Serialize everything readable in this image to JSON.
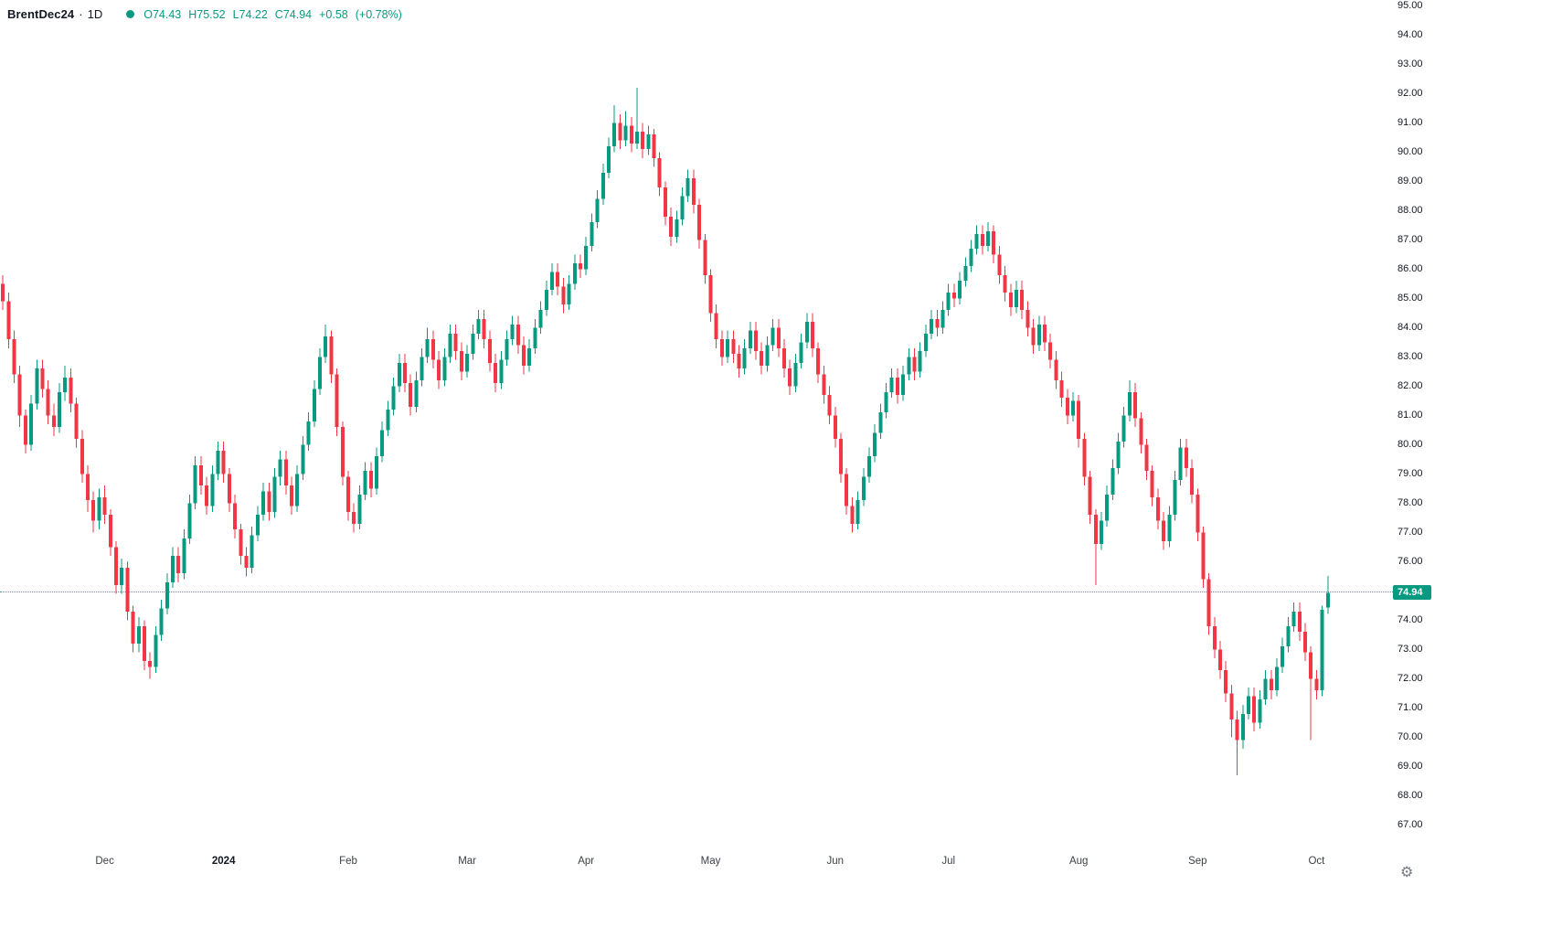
{
  "header": {
    "symbol": "BrentDec24",
    "separator": "·",
    "interval": "1D",
    "ohlc": {
      "o_label": "O",
      "open": "74.43",
      "h_label": "H",
      "high": "75.52",
      "l_label": "L",
      "low": "74.22",
      "c_label": "C",
      "close": "74.94",
      "change": "+0.58",
      "change_pct": "(+0.78%)"
    }
  },
  "colors": {
    "up": "#089981",
    "down": "#f23645",
    "text": "#131722",
    "axis_text": "#131722"
  },
  "price_axis": {
    "last_price": "74.94"
  },
  "icons": {
    "settings": "⚙"
  },
  "chart_data": {
    "type": "candlestick",
    "title": "BrentDec24 · 1D",
    "symbol": "BrentDec24",
    "interval": "1D",
    "ylim": [
      66.2,
      95.2
    ],
    "slots": 246,
    "last_price": 74.94,
    "grid": false,
    "legend_position": "top-left",
    "y_ticks": [
      67,
      68,
      69,
      70,
      71,
      72,
      73,
      74,
      75,
      76,
      77,
      78,
      79,
      80,
      81,
      82,
      83,
      84,
      85,
      86,
      87,
      88,
      89,
      90,
      91,
      92,
      93,
      94,
      95
    ],
    "x_ticks": [
      {
        "label": "Dec",
        "bar": 18,
        "bold": false
      },
      {
        "label": "2024",
        "bar": 39,
        "bold": true
      },
      {
        "label": "Feb",
        "bar": 61,
        "bold": false
      },
      {
        "label": "Mar",
        "bar": 82,
        "bold": false
      },
      {
        "label": "Apr",
        "bar": 103,
        "bold": false
      },
      {
        "label": "May",
        "bar": 125,
        "bold": false
      },
      {
        "label": "Jun",
        "bar": 147,
        "bold": false
      },
      {
        "label": "Jul",
        "bar": 167,
        "bold": false
      },
      {
        "label": "Aug",
        "bar": 190,
        "bold": false
      },
      {
        "label": "Sep",
        "bar": 211,
        "bold": false
      },
      {
        "label": "Oct",
        "bar": 232,
        "bold": false
      }
    ],
    "candles": [
      [
        85.5,
        85.8,
        84.6,
        84.9
      ],
      [
        84.9,
        85.2,
        83.3,
        83.6
      ],
      [
        83.6,
        83.9,
        82.1,
        82.4
      ],
      [
        82.4,
        82.7,
        80.6,
        81.0
      ],
      [
        81.0,
        81.2,
        79.7,
        80.0
      ],
      [
        80.0,
        81.7,
        79.8,
        81.4
      ],
      [
        81.4,
        82.9,
        81.2,
        82.6
      ],
      [
        82.6,
        82.9,
        81.6,
        81.9
      ],
      [
        81.9,
        82.2,
        80.7,
        81.0
      ],
      [
        81.0,
        81.4,
        80.3,
        80.6
      ],
      [
        80.6,
        82.1,
        80.4,
        81.8
      ],
      [
        81.8,
        82.7,
        81.5,
        82.3
      ],
      [
        82.3,
        82.6,
        81.1,
        81.4
      ],
      [
        81.4,
        81.6,
        79.9,
        80.2
      ],
      [
        80.2,
        80.5,
        78.7,
        79.0
      ],
      [
        79.0,
        79.3,
        77.7,
        78.1
      ],
      [
        78.1,
        78.4,
        77.0,
        77.4
      ],
      [
        77.4,
        78.5,
        77.1,
        78.2
      ],
      [
        78.2,
        78.6,
        77.3,
        77.6
      ],
      [
        77.6,
        77.8,
        76.2,
        76.5
      ],
      [
        76.5,
        76.7,
        74.9,
        75.2
      ],
      [
        75.2,
        76.1,
        74.9,
        75.8
      ],
      [
        75.8,
        76.0,
        74.0,
        74.3
      ],
      [
        74.3,
        74.5,
        72.9,
        73.2
      ],
      [
        73.2,
        74.1,
        72.9,
        73.8
      ],
      [
        73.8,
        74.0,
        72.3,
        72.6
      ],
      [
        72.6,
        72.9,
        72.0,
        72.4
      ],
      [
        72.4,
        73.8,
        72.2,
        73.5
      ],
      [
        73.5,
        74.7,
        73.3,
        74.4
      ],
      [
        74.4,
        75.6,
        74.2,
        75.3
      ],
      [
        75.3,
        76.5,
        75.1,
        76.2
      ],
      [
        76.2,
        76.5,
        75.3,
        75.6
      ],
      [
        75.6,
        77.1,
        75.4,
        76.8
      ],
      [
        76.8,
        78.3,
        76.6,
        78.0
      ],
      [
        78.0,
        79.6,
        77.8,
        79.3
      ],
      [
        79.3,
        79.6,
        78.3,
        78.6
      ],
      [
        78.6,
        78.9,
        77.6,
        77.9
      ],
      [
        77.9,
        79.3,
        77.7,
        79.0
      ],
      [
        79.0,
        80.1,
        78.8,
        79.8
      ],
      [
        79.8,
        80.1,
        78.7,
        79.0
      ],
      [
        79.0,
        79.2,
        77.7,
        78.0
      ],
      [
        78.0,
        78.3,
        76.8,
        77.1
      ],
      [
        77.1,
        77.3,
        75.9,
        76.2
      ],
      [
        76.2,
        76.5,
        75.5,
        75.8
      ],
      [
        75.8,
        77.2,
        75.6,
        76.9
      ],
      [
        76.9,
        77.9,
        76.7,
        77.6
      ],
      [
        77.6,
        78.7,
        77.4,
        78.4
      ],
      [
        78.4,
        78.7,
        77.4,
        77.7
      ],
      [
        77.7,
        79.2,
        77.5,
        78.9
      ],
      [
        78.9,
        79.8,
        78.6,
        79.5
      ],
      [
        79.5,
        79.8,
        78.3,
        78.6
      ],
      [
        78.6,
        78.9,
        77.6,
        77.9
      ],
      [
        77.9,
        79.3,
        77.7,
        79.0
      ],
      [
        79.0,
        80.3,
        78.8,
        80.0
      ],
      [
        80.0,
        81.1,
        79.8,
        80.8
      ],
      [
        80.8,
        82.2,
        80.6,
        81.9
      ],
      [
        81.9,
        83.3,
        81.7,
        83.0
      ],
      [
        83.0,
        84.1,
        82.8,
        83.7
      ],
      [
        83.7,
        83.9,
        82.1,
        82.4
      ],
      [
        82.4,
        82.6,
        80.3,
        80.6
      ],
      [
        80.6,
        80.8,
        78.6,
        78.9
      ],
      [
        78.9,
        79.1,
        77.4,
        77.7
      ],
      [
        77.7,
        78.0,
        77.0,
        77.3
      ],
      [
        77.3,
        78.6,
        77.1,
        78.3
      ],
      [
        78.3,
        79.4,
        78.1,
        79.1
      ],
      [
        79.1,
        79.4,
        78.2,
        78.5
      ],
      [
        78.5,
        79.9,
        78.3,
        79.6
      ],
      [
        79.6,
        80.8,
        79.4,
        80.5
      ],
      [
        80.5,
        81.5,
        80.3,
        81.2
      ],
      [
        81.2,
        82.3,
        81.0,
        82.0
      ],
      [
        82.0,
        83.1,
        81.8,
        82.8
      ],
      [
        82.8,
        83.1,
        81.8,
        82.1
      ],
      [
        82.1,
        82.4,
        81.0,
        81.3
      ],
      [
        81.3,
        82.5,
        81.1,
        82.2
      ],
      [
        82.2,
        83.3,
        82.0,
        83.0
      ],
      [
        83.0,
        84.0,
        82.8,
        83.6
      ],
      [
        83.6,
        83.9,
        82.6,
        82.9
      ],
      [
        82.9,
        83.2,
        81.9,
        82.2
      ],
      [
        82.2,
        83.3,
        82.0,
        83.0
      ],
      [
        83.0,
        84.1,
        82.8,
        83.8
      ],
      [
        83.8,
        84.1,
        82.9,
        83.2
      ],
      [
        83.2,
        83.5,
        82.2,
        82.5
      ],
      [
        82.5,
        83.4,
        82.3,
        83.1
      ],
      [
        83.1,
        84.1,
        82.9,
        83.8
      ],
      [
        83.8,
        84.6,
        83.6,
        84.3
      ],
      [
        84.3,
        84.6,
        83.3,
        83.6
      ],
      [
        83.6,
        83.9,
        82.5,
        82.8
      ],
      [
        82.8,
        83.1,
        81.8,
        82.1
      ],
      [
        82.1,
        83.2,
        81.9,
        82.9
      ],
      [
        82.9,
        83.9,
        82.7,
        83.6
      ],
      [
        83.6,
        84.4,
        83.4,
        84.1
      ],
      [
        84.1,
        84.4,
        83.1,
        83.4
      ],
      [
        83.4,
        83.7,
        82.4,
        82.7
      ],
      [
        82.7,
        83.6,
        82.5,
        83.3
      ],
      [
        83.3,
        84.3,
        83.1,
        84.0
      ],
      [
        84.0,
        84.9,
        83.8,
        84.6
      ],
      [
        84.6,
        85.6,
        84.4,
        85.3
      ],
      [
        85.3,
        86.2,
        85.1,
        85.9
      ],
      [
        85.9,
        86.2,
        85.1,
        85.4
      ],
      [
        85.4,
        85.7,
        84.5,
        84.8
      ],
      [
        84.8,
        85.8,
        84.6,
        85.5
      ],
      [
        85.5,
        86.5,
        85.3,
        86.2
      ],
      [
        86.2,
        86.5,
        85.7,
        86.0
      ],
      [
        86.0,
        87.1,
        85.8,
        86.8
      ],
      [
        86.8,
        87.9,
        86.6,
        87.6
      ],
      [
        87.6,
        88.7,
        87.4,
        88.4
      ],
      [
        88.4,
        89.6,
        88.2,
        89.3
      ],
      [
        89.3,
        90.5,
        89.1,
        90.2
      ],
      [
        90.2,
        91.6,
        90.0,
        91.0
      ],
      [
        91.0,
        91.3,
        90.1,
        90.4
      ],
      [
        90.4,
        91.4,
        90.2,
        90.9
      ],
      [
        90.9,
        91.2,
        90.0,
        90.3
      ],
      [
        90.3,
        92.2,
        90.1,
        90.7
      ],
      [
        90.7,
        91.0,
        89.8,
        90.1
      ],
      [
        90.1,
        90.9,
        89.9,
        90.6
      ],
      [
        90.6,
        90.8,
        89.5,
        89.8
      ],
      [
        89.8,
        90.0,
        88.5,
        88.8
      ],
      [
        88.8,
        89.0,
        87.5,
        87.8
      ],
      [
        87.8,
        88.1,
        86.8,
        87.1
      ],
      [
        87.1,
        88.0,
        86.9,
        87.7
      ],
      [
        87.7,
        88.8,
        87.5,
        88.5
      ],
      [
        88.5,
        89.4,
        88.3,
        89.1
      ],
      [
        89.1,
        89.4,
        87.9,
        88.2
      ],
      [
        88.2,
        88.4,
        86.7,
        87.0
      ],
      [
        87.0,
        87.2,
        85.5,
        85.8
      ],
      [
        85.8,
        86.0,
        84.2,
        84.5
      ],
      [
        84.5,
        84.8,
        83.3,
        83.6
      ],
      [
        83.6,
        83.9,
        82.7,
        83.0
      ],
      [
        83.0,
        83.9,
        82.8,
        83.6
      ],
      [
        83.6,
        83.9,
        82.8,
        83.1
      ],
      [
        83.1,
        83.4,
        82.3,
        82.6
      ],
      [
        82.6,
        83.6,
        82.4,
        83.3
      ],
      [
        83.3,
        84.2,
        83.1,
        83.9
      ],
      [
        83.9,
        84.2,
        82.9,
        83.2
      ],
      [
        83.2,
        83.5,
        82.4,
        82.7
      ],
      [
        82.7,
        83.7,
        82.5,
        83.4
      ],
      [
        83.4,
        84.3,
        83.2,
        84.0
      ],
      [
        84.0,
        84.3,
        83.0,
        83.3
      ],
      [
        83.3,
        83.6,
        82.3,
        82.6
      ],
      [
        82.6,
        82.9,
        81.7,
        82.0
      ],
      [
        82.0,
        83.1,
        81.8,
        82.8
      ],
      [
        82.8,
        83.8,
        82.6,
        83.5
      ],
      [
        83.5,
        84.5,
        83.3,
        84.2
      ],
      [
        84.2,
        84.5,
        83.0,
        83.3
      ],
      [
        83.3,
        83.5,
        82.1,
        82.4
      ],
      [
        82.4,
        82.7,
        81.4,
        81.7
      ],
      [
        81.7,
        82.0,
        80.7,
        81.0
      ],
      [
        81.0,
        81.3,
        79.9,
        80.2
      ],
      [
        80.2,
        80.4,
        78.7,
        79.0
      ],
      [
        79.0,
        79.2,
        77.6,
        77.9
      ],
      [
        77.9,
        78.2,
        77.0,
        77.3
      ],
      [
        77.3,
        78.4,
        77.1,
        78.1
      ],
      [
        78.1,
        79.2,
        77.9,
        78.9
      ],
      [
        78.9,
        79.9,
        78.7,
        79.6
      ],
      [
        79.6,
        80.7,
        79.4,
        80.4
      ],
      [
        80.4,
        81.4,
        80.2,
        81.1
      ],
      [
        81.1,
        82.1,
        80.9,
        81.8
      ],
      [
        81.8,
        82.6,
        81.6,
        82.3
      ],
      [
        82.3,
        82.6,
        81.4,
        81.7
      ],
      [
        81.7,
        82.7,
        81.5,
        82.4
      ],
      [
        82.4,
        83.3,
        82.2,
        83.0
      ],
      [
        83.0,
        83.3,
        82.2,
        82.5
      ],
      [
        82.5,
        83.5,
        82.3,
        83.2
      ],
      [
        83.2,
        84.1,
        83.0,
        83.8
      ],
      [
        83.8,
        84.6,
        83.6,
        84.3
      ],
      [
        84.3,
        84.6,
        83.7,
        84.0
      ],
      [
        84.0,
        84.9,
        83.8,
        84.6
      ],
      [
        84.6,
        85.5,
        84.4,
        85.2
      ],
      [
        85.2,
        85.5,
        84.7,
        85.0
      ],
      [
        85.0,
        85.9,
        84.8,
        85.6
      ],
      [
        85.6,
        86.4,
        85.4,
        86.1
      ],
      [
        86.1,
        87.0,
        85.9,
        86.7
      ],
      [
        86.7,
        87.5,
        86.5,
        87.2
      ],
      [
        87.2,
        87.5,
        86.5,
        86.8
      ],
      [
        86.8,
        87.6,
        86.6,
        87.3
      ],
      [
        87.3,
        87.5,
        86.2,
        86.5
      ],
      [
        86.5,
        86.8,
        85.5,
        85.8
      ],
      [
        85.8,
        86.1,
        84.9,
        85.2
      ],
      [
        85.2,
        85.5,
        84.4,
        84.7
      ],
      [
        84.7,
        85.6,
        84.5,
        85.3
      ],
      [
        85.3,
        85.6,
        84.3,
        84.6
      ],
      [
        84.6,
        84.9,
        83.7,
        84.0
      ],
      [
        84.0,
        84.3,
        83.1,
        83.4
      ],
      [
        83.4,
        84.4,
        83.2,
        84.1
      ],
      [
        84.1,
        84.4,
        83.2,
        83.5
      ],
      [
        83.5,
        83.8,
        82.6,
        82.9
      ],
      [
        82.9,
        83.2,
        81.9,
        82.2
      ],
      [
        82.2,
        82.5,
        81.3,
        81.6
      ],
      [
        81.6,
        81.9,
        80.7,
        81.0
      ],
      [
        81.0,
        81.8,
        80.8,
        81.5
      ],
      [
        81.5,
        81.7,
        79.9,
        80.2
      ],
      [
        80.2,
        80.4,
        78.6,
        78.9
      ],
      [
        78.9,
        79.1,
        77.3,
        77.6
      ],
      [
        77.6,
        77.8,
        75.2,
        76.6
      ],
      [
        76.6,
        77.7,
        76.4,
        77.4
      ],
      [
        77.4,
        78.6,
        77.2,
        78.3
      ],
      [
        78.3,
        79.5,
        78.1,
        79.2
      ],
      [
        79.2,
        80.4,
        79.0,
        80.1
      ],
      [
        80.1,
        81.3,
        79.9,
        81.0
      ],
      [
        81.0,
        82.2,
        80.8,
        81.8
      ],
      [
        81.8,
        82.1,
        80.6,
        80.9
      ],
      [
        80.9,
        81.1,
        79.7,
        80.0
      ],
      [
        80.0,
        80.2,
        78.8,
        79.1
      ],
      [
        79.1,
        79.3,
        77.9,
        78.2
      ],
      [
        78.2,
        78.5,
        77.1,
        77.4
      ],
      [
        77.4,
        77.7,
        76.4,
        76.7
      ],
      [
        76.7,
        77.9,
        76.5,
        77.6
      ],
      [
        77.6,
        79.1,
        77.4,
        78.8
      ],
      [
        78.8,
        80.2,
        78.6,
        79.9
      ],
      [
        79.9,
        80.2,
        78.9,
        79.2
      ],
      [
        79.2,
        79.5,
        78.0,
        78.3
      ],
      [
        78.3,
        78.5,
        76.7,
        77.0
      ],
      [
        77.0,
        77.2,
        75.1,
        75.4
      ],
      [
        75.4,
        75.6,
        73.5,
        73.8
      ],
      [
        73.8,
        74.1,
        72.7,
        73.0
      ],
      [
        73.0,
        73.3,
        72.0,
        72.3
      ],
      [
        72.3,
        72.6,
        71.2,
        71.5
      ],
      [
        71.5,
        71.8,
        70.0,
        70.6
      ],
      [
        70.6,
        70.9,
        68.7,
        69.9
      ],
      [
        69.9,
        71.1,
        69.6,
        70.8
      ],
      [
        70.8,
        71.7,
        70.6,
        71.4
      ],
      [
        71.4,
        71.7,
        70.2,
        70.5
      ],
      [
        70.5,
        71.6,
        70.3,
        71.3
      ],
      [
        71.3,
        72.3,
        71.1,
        72.0
      ],
      [
        72.0,
        72.3,
        71.3,
        71.6
      ],
      [
        71.6,
        72.7,
        71.4,
        72.4
      ],
      [
        72.4,
        73.4,
        72.2,
        73.1
      ],
      [
        73.1,
        74.1,
        72.9,
        73.8
      ],
      [
        73.8,
        74.6,
        73.6,
        74.3
      ],
      [
        74.3,
        74.6,
        73.3,
        73.6
      ],
      [
        73.6,
        73.9,
        72.6,
        72.9
      ],
      [
        72.9,
        73.1,
        69.9,
        72.0
      ],
      [
        72.0,
        72.3,
        71.3,
        71.6
      ],
      [
        71.6,
        74.5,
        71.4,
        74.36
      ],
      [
        74.43,
        75.52,
        74.22,
        74.94
      ]
    ]
  }
}
